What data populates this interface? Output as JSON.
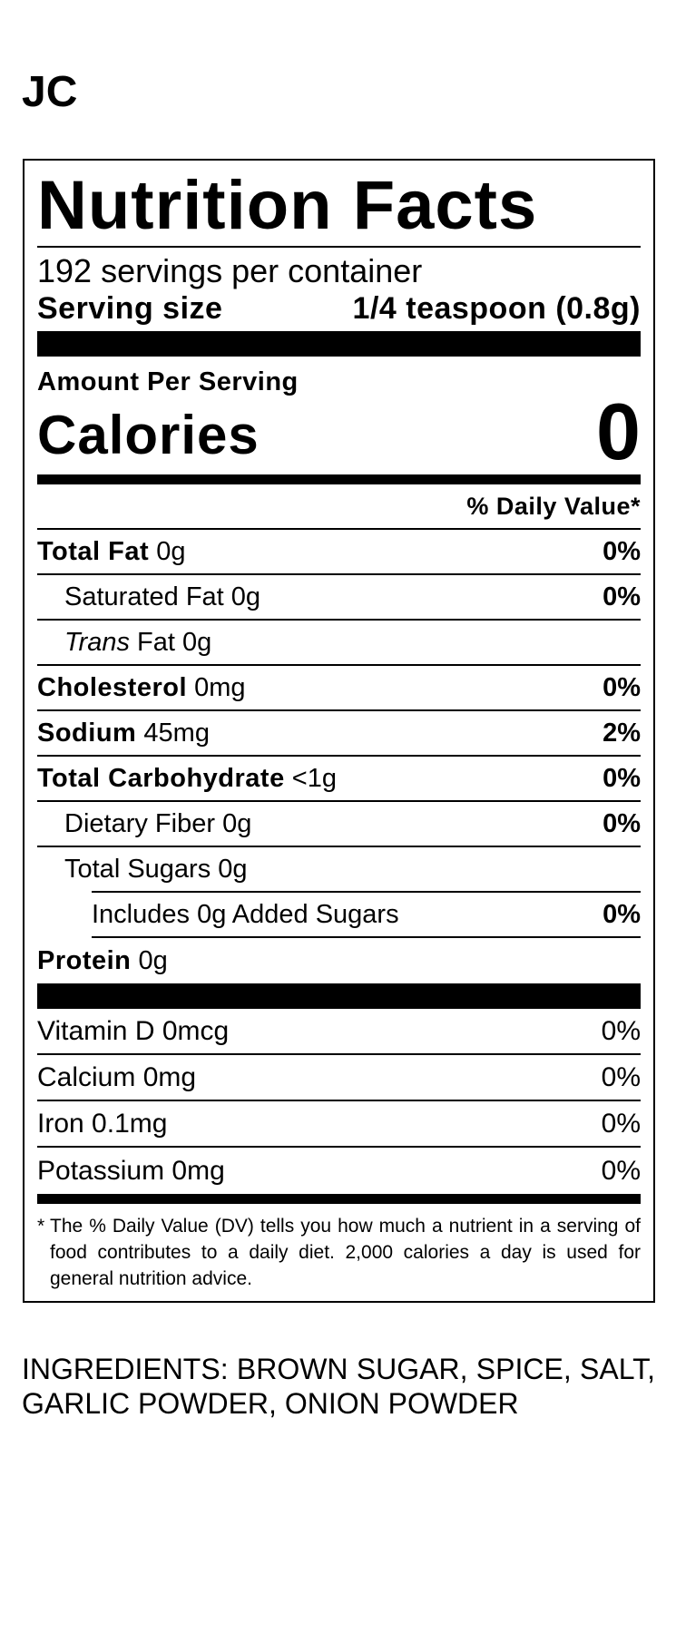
{
  "brand": "JC",
  "label": {
    "title": "Nutrition Facts",
    "servings": "192 servings per container",
    "serving_size_label": "Serving size",
    "serving_size": "1/4 teaspoon (0.8g)",
    "amount_per_serving": "Amount Per Serving",
    "calories_label": "Calories",
    "calories": "0",
    "daily_value_header": "% Daily Value*",
    "nutrients": [
      {
        "name": "Total Fat",
        "amount": "0g",
        "dv": "0%"
      },
      {
        "name": "Saturated Fat",
        "amount": "0g",
        "dv": "0%"
      },
      {
        "name_italic": "Trans",
        "name": "Fat",
        "amount": "0g"
      },
      {
        "name": "Cholesterol",
        "amount": "0mg",
        "dv": "0%"
      },
      {
        "name": "Sodium",
        "amount": "45mg",
        "dv": "2%"
      },
      {
        "name": "Total Carbohydrate",
        "amount": "<1g",
        "dv": "0%"
      },
      {
        "name": "Dietary Fiber",
        "amount": "0g",
        "dv": "0%"
      },
      {
        "name": "Total Sugars",
        "amount": "0g"
      },
      {
        "name": "Includes 0g Added Sugars",
        "dv": "0%"
      },
      {
        "name": "Protein",
        "amount": "0g"
      }
    ],
    "vitamins": [
      {
        "name": "Vitamin D",
        "amount": "0mcg",
        "dv": "0%"
      },
      {
        "name": "Calcium",
        "amount": "0mg",
        "dv": "0%"
      },
      {
        "name": "Iron",
        "amount": "0.1mg",
        "dv": "0%"
      },
      {
        "name": "Potassium",
        "amount": "0mg",
        "dv": "0%"
      }
    ],
    "footnote_mark": "*",
    "footnote": "The % Daily Value (DV) tells you how much a nutrient in a serving of food contributes to a daily diet. 2,000 calories a day is used for general nutrition advice."
  },
  "ingredients": "INGREDIENTS: BROWN SUGAR, SPICE, SALT, GARLIC POWDER, ONION POWDER"
}
